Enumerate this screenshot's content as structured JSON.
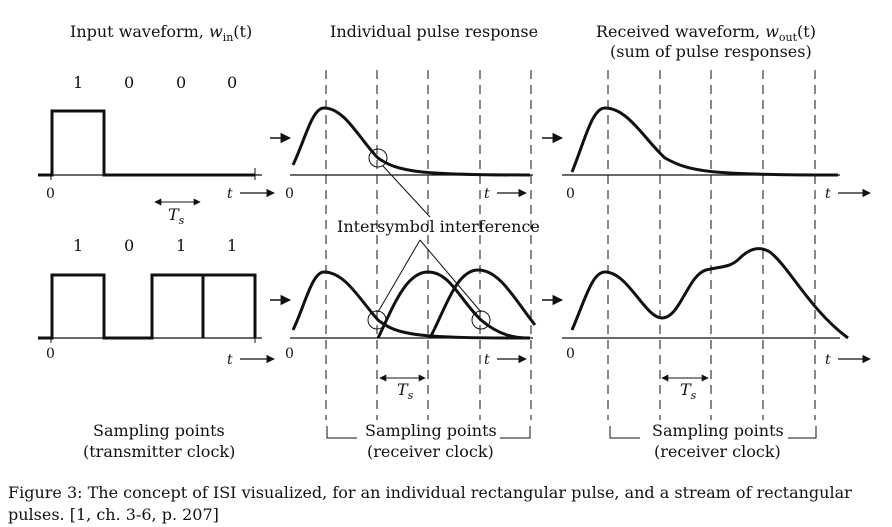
{
  "headers": {
    "input_prefix": "Input waveform, ",
    "input_var": "w",
    "input_sub": "in",
    "input_arg": "(t)",
    "pulse": "Individual pulse response",
    "received_prefix": "Received waveform, ",
    "received_var": "w",
    "received_sub": "out",
    "received_arg": "(t)",
    "received_line2": "(sum of pulse responses)"
  },
  "row1_bits": [
    "1",
    "0",
    "0",
    "0"
  ],
  "row2_bits": [
    "1",
    "0",
    "1",
    "1"
  ],
  "axis": {
    "origin": "0",
    "t": "t"
  },
  "ts": {
    "symbol": "T",
    "sub": "s"
  },
  "isi_label": "Intersymbol interference",
  "sampling": {
    "transmitter_line1": "Sampling points",
    "transmitter_line2": "(transmitter clock)",
    "receiver_line1": "Sampling points",
    "receiver_line2": "(receiver clock)"
  },
  "caption": "Figure 3: The concept of ISI visualized, for an individual rectangular pulse, and a stream of rectangular pulses. [1, ch. 3-6, p. 207]"
}
